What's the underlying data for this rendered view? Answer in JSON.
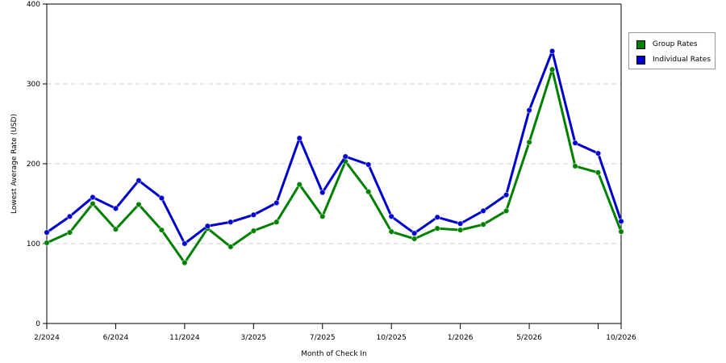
{
  "chart_data": {
    "type": "line",
    "xlabel": "Month of Check In",
    "ylabel": "Lowest Average Rate (USD)",
    "ylim": [
      0,
      400
    ],
    "yticks": [
      0,
      100,
      200,
      300,
      400
    ],
    "x_tick_labels": [
      {
        "label": "2/2024",
        "index": 0
      },
      {
        "label": "6/2024",
        "index": 3
      },
      {
        "label": "11/2024",
        "index": 6
      },
      {
        "label": "3/2025",
        "index": 9
      },
      {
        "label": "7/2025",
        "index": 12
      },
      {
        "label": "10/2025",
        "index": 15
      },
      {
        "label": "1/2026",
        "index": 18
      },
      {
        "label": "5/2026",
        "index": 21
      },
      {
        "label": "",
        "index": 24
      },
      {
        "label": "10/2026",
        "index": 25
      }
    ],
    "grid": true,
    "legend_position": "right",
    "series": [
      {
        "name": "Group Rates",
        "color": "#008000",
        "values": [
          101,
          114,
          150,
          118,
          149,
          117,
          76,
          119,
          96,
          116,
          127,
          174,
          134,
          203,
          165,
          115,
          106,
          119,
          117,
          124,
          141,
          227,
          318,
          197,
          189,
          115
        ]
      },
      {
        "name": "Individual Rates",
        "color": "#0000cc",
        "values": [
          114,
          134,
          158,
          144,
          179,
          157,
          100,
          122,
          127,
          136,
          151,
          232,
          164,
          209,
          199,
          134,
          113,
          133,
          125,
          141,
          161,
          267,
          341,
          226,
          213,
          128
        ]
      }
    ]
  }
}
